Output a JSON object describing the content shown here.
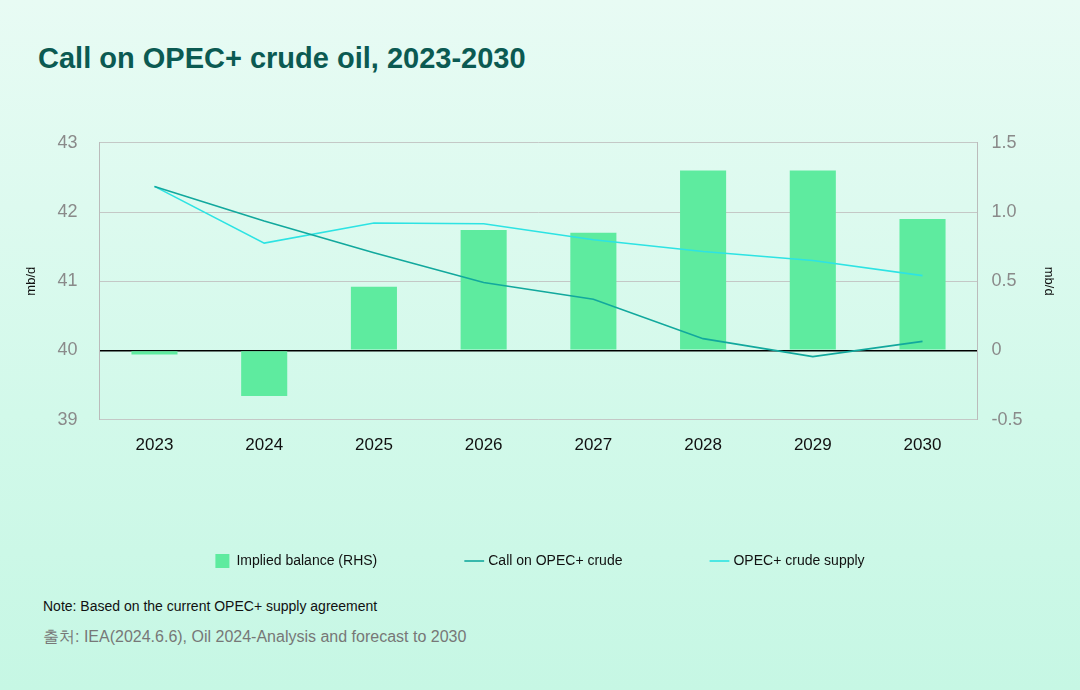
{
  "chart_data": {
    "type": "bar",
    "title": "Call on OPEC+ crude oil, 2023-2030",
    "note": "Note: Based on the current OPEC+ supply agreement",
    "source": "출처: IEA(2024.6.6), Oil 2024-Analysis and forecast to 2030",
    "categories": [
      "2023",
      "2024",
      "2025",
      "2026",
      "2027",
      "2028",
      "2029",
      "2030"
    ],
    "ylabel": "mb/d",
    "y2label": "mb/d",
    "ylim": [
      39,
      43
    ],
    "yticks": [
      39,
      40,
      41,
      42,
      43
    ],
    "y2lim": [
      -0.5,
      1.5
    ],
    "y2ticks": [
      -0.5,
      0,
      0.5,
      1,
      1.5
    ],
    "grid": true,
    "legend": "bottom",
    "series": [
      {
        "name": "Implied balance (RHS)",
        "type": "bar",
        "axis": "y2",
        "color": "#5eeb9f",
        "values": [
          -0.03,
          -0.33,
          0.46,
          0.87,
          0.85,
          1.3,
          1.3,
          0.95
        ]
      },
      {
        "name": "Call on OPEC+ crude",
        "type": "line",
        "color": "#12a89d",
        "values": [
          42.37,
          41.87,
          41.41,
          40.98,
          40.74,
          40.17,
          39.91,
          40.13
        ]
      },
      {
        "name": "OPEC+ crude supply",
        "type": "line",
        "color": "#2de3e3",
        "values": [
          42.37,
          41.55,
          41.84,
          41.83,
          41.6,
          41.43,
          41.3,
          41.08
        ]
      }
    ]
  }
}
